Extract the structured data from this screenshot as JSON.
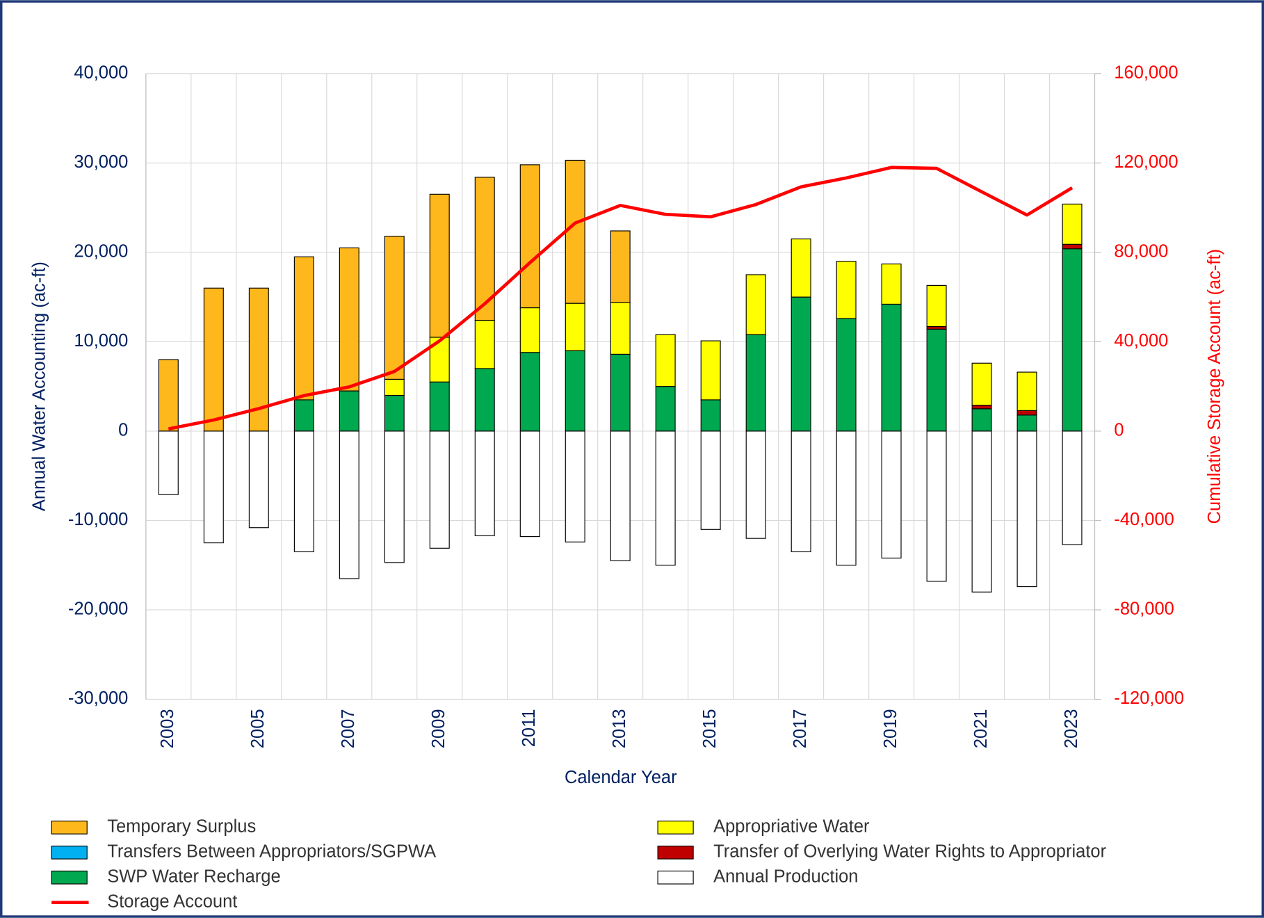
{
  "chart_data": {
    "type": "bar",
    "x_label": "Calendar Year",
    "y_label": "Annual Water Accounting (ac-ft)",
    "y2_label": "Cumulative Storage Account (ac-ft)",
    "categories": [
      "2003",
      null,
      "2005",
      null,
      "2007",
      null,
      "2009",
      null,
      "2011",
      null,
      "2013",
      null,
      "2015",
      null,
      "2017",
      null,
      "2019",
      null,
      "2021",
      null,
      "2023"
    ],
    "ylim": [
      -30000,
      40000
    ],
    "yticks": [
      {
        "value": -30000,
        "label": "-30,000"
      },
      {
        "value": -20000,
        "label": "-20,000"
      },
      {
        "value": -10000,
        "label": "-10,000"
      },
      0,
      {
        "value": 10000,
        "label": "10,000"
      },
      {
        "value": 20000,
        "label": "20,000"
      },
      {
        "value": 30000,
        "label": "30,000"
      },
      {
        "value": 40000,
        "label": "40,000"
      }
    ],
    "y2lim": [
      -120000,
      160000
    ],
    "y2ticks": [
      {
        "value": -120000,
        "label": "-120,000"
      },
      {
        "value": -80000,
        "label": "-80,000"
      },
      {
        "value": -40000,
        "label": "-40,000"
      },
      0,
      {
        "value": 40000,
        "label": "40,000"
      },
      {
        "value": 80000,
        "label": "80,000"
      },
      {
        "value": 120000,
        "label": "120,000"
      },
      {
        "value": 160000,
        "label": "160,000"
      }
    ],
    "grid": true,
    "series": [
      {
        "name": "Temporary Surplus",
        "color": "#FFB81C",
        "values": [
          8000,
          16000,
          16000,
          16000,
          16000,
          16000,
          16000,
          16000,
          16000,
          16000,
          8000,
          0,
          0,
          0,
          0,
          0,
          0,
          0,
          0,
          0,
          0
        ]
      },
      {
        "name": "Transfers Between Appropriators/SGPWA",
        "color": "#00B0F0",
        "values": [
          0,
          0,
          0,
          0,
          0,
          0,
          0,
          0,
          0,
          0,
          0,
          0,
          0,
          0,
          0,
          0,
          0,
          0,
          0,
          0,
          0
        ]
      },
      {
        "name": "SWP Water Recharge",
        "color": "#00A94F",
        "values": [
          0,
          0,
          0,
          3500,
          4500,
          4000,
          5500,
          7000,
          8800,
          9000,
          8600,
          5000,
          3500,
          10800,
          15000,
          12600,
          14200,
          11400,
          2500,
          1800,
          20400
        ]
      },
      {
        "name": "Storage Account",
        "color": "#FF0000",
        "type": "line",
        "axis": "y2",
        "values": [
          1000,
          5000,
          10100,
          15900,
          19800,
          26700,
          40400,
          57000,
          75400,
          93100,
          101000,
          97000,
          95900,
          101400,
          109300,
          113300,
          118000,
          117600,
          107100,
          96700,
          108900
        ]
      },
      {
        "name": "Appropriative Water",
        "color": "#FFFF00",
        "values": [
          0,
          0,
          0,
          0,
          0,
          1800,
          5000,
          5400,
          5000,
          5300,
          5800,
          5800,
          6600,
          6700,
          6500,
          6400,
          4500,
          4600,
          4700,
          4300,
          4500
        ]
      },
      {
        "name": "Transfer of Overlying Water Rights to Appropriator",
        "color": "#C00000",
        "values": [
          0,
          0,
          0,
          0,
          0,
          0,
          0,
          0,
          0,
          0,
          0,
          0,
          0,
          0,
          0,
          0,
          0,
          300,
          400,
          500,
          500
        ]
      },
      {
        "name": "Annual Production",
        "color": "#FFFFFF",
        "values": [
          -7100,
          -12500,
          -10800,
          -13500,
          -16500,
          -14700,
          -13100,
          -11700,
          -11800,
          -12400,
          -14500,
          -15000,
          -11000,
          -12000,
          -13500,
          -15000,
          -14200,
          -16800,
          -18000,
          -17400,
          -12700
        ]
      }
    ]
  }
}
